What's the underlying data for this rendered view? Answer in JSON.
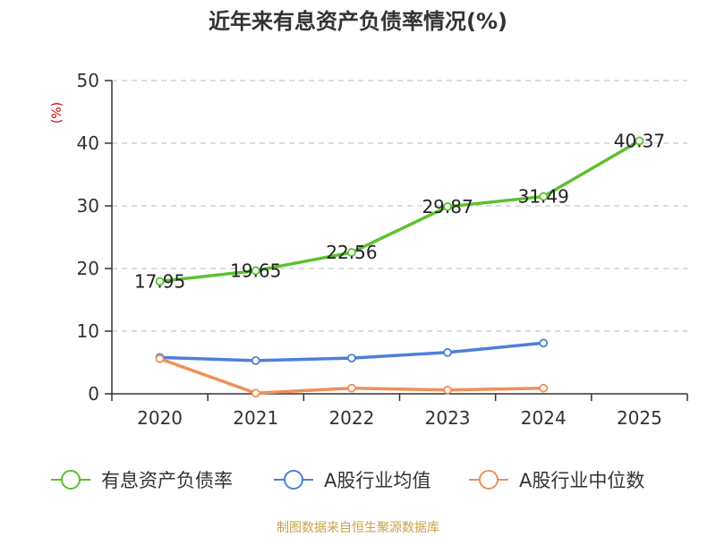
{
  "chart_data": {
    "type": "line",
    "title": "近年来有息资产负债率情况(%)",
    "ylabel": "(%)",
    "categories": [
      "2020",
      "2021",
      "2022",
      "2023",
      "2024",
      "2025"
    ],
    "ylim": [
      0,
      50
    ],
    "yticks": [
      0,
      10,
      20,
      30,
      40,
      50
    ],
    "grid": true,
    "legend_position": "bottom",
    "series": [
      {
        "name": "有息资产负债率",
        "color": "#5cc12f",
        "values": [
          17.95,
          19.65,
          22.56,
          29.87,
          31.49,
          40.37
        ],
        "show_labels": true
      },
      {
        "name": "A股行业均值",
        "color": "#4d7fd9",
        "values": [
          5.8,
          5.3,
          5.7,
          6.6,
          8.1,
          null
        ],
        "show_labels": false
      },
      {
        "name": "A股行业中位数",
        "color": "#f0905a",
        "values": [
          5.6,
          0.1,
          0.9,
          0.6,
          0.9,
          null
        ],
        "show_labels": false
      }
    ]
  },
  "source": "制图数据来自恒生聚源数据库"
}
